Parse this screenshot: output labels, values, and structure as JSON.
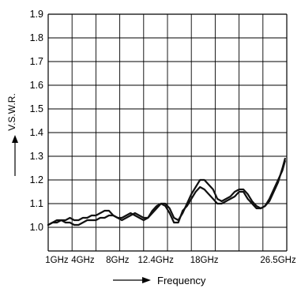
{
  "chart_data": {
    "type": "line",
    "title": "",
    "ylabel": "V.S.W.R.",
    "xlabel": "Frequency",
    "ylim": [
      0.9,
      1.9
    ],
    "xlim": [
      0,
      27.5
    ],
    "grid": true,
    "y_ticks": [
      1.0,
      1.1,
      1.2,
      1.3,
      1.4,
      1.5,
      1.6,
      1.7,
      1.8,
      1.9
    ],
    "x_tick_labels": [
      {
        "value": 1,
        "label": "1GHz"
      },
      {
        "value": 4,
        "label": "4GHz"
      },
      {
        "value": 8,
        "label": "8GHz"
      },
      {
        "value": 12.4,
        "label": "12.4GHz"
      },
      {
        "value": 18,
        "label": "18GHz"
      },
      {
        "value": 26.5,
        "label": "26.5GHz"
      }
    ],
    "series": [
      {
        "x": [
          0,
          0.5,
          1.0,
          1.5,
          2.0,
          2.5,
          3.0,
          3.5,
          4.0,
          4.5,
          5.0,
          5.5,
          6.0,
          6.5,
          7.0,
          7.5,
          8.0,
          8.5,
          9.0,
          9.5,
          10.0,
          10.5,
          11.0,
          11.5,
          12.0,
          12.5,
          13.0,
          13.5,
          14.0,
          14.5,
          15.0,
          15.5,
          16.0,
          16.5,
          17.0,
          17.5,
          18.0,
          18.5,
          19.0,
          19.5,
          20.0,
          20.5,
          21.0,
          21.5,
          22.0,
          22.5,
          23.0,
          23.5,
          24.0,
          24.5,
          25.0,
          25.5,
          26.0,
          26.5,
          27.0,
          27.3
        ],
        "values": [
          1.01,
          1.02,
          1.02,
          1.03,
          1.03,
          1.04,
          1.03,
          1.03,
          1.04,
          1.04,
          1.05,
          1.05,
          1.06,
          1.07,
          1.07,
          1.05,
          1.04,
          1.04,
          1.05,
          1.06,
          1.05,
          1.04,
          1.03,
          1.04,
          1.06,
          1.08,
          1.1,
          1.1,
          1.08,
          1.04,
          1.03,
          1.06,
          1.1,
          1.14,
          1.17,
          1.2,
          1.2,
          1.18,
          1.16,
          1.12,
          1.11,
          1.12,
          1.13,
          1.15,
          1.16,
          1.16,
          1.14,
          1.11,
          1.09,
          1.08,
          1.09,
          1.11,
          1.15,
          1.19,
          1.25,
          1.29
        ]
      },
      {
        "x": [
          0,
          0.5,
          1.0,
          1.5,
          2.0,
          2.5,
          3.0,
          3.5,
          4.0,
          4.5,
          5.0,
          5.5,
          6.0,
          6.5,
          7.0,
          7.5,
          8.0,
          8.5,
          9.0,
          9.5,
          10.0,
          10.5,
          11.0,
          11.5,
          12.0,
          12.5,
          13.0,
          13.5,
          14.0,
          14.5,
          15.0,
          15.5,
          16.0,
          16.5,
          17.0,
          17.5,
          18.0,
          18.5,
          19.0,
          19.5,
          20.0,
          20.5,
          21.0,
          21.5,
          22.0,
          22.5,
          23.0,
          23.5,
          24.0,
          24.5,
          25.0,
          25.5,
          26.0,
          26.5,
          27.0,
          27.3
        ],
        "values": [
          1.01,
          1.02,
          1.03,
          1.03,
          1.02,
          1.02,
          1.01,
          1.01,
          1.02,
          1.03,
          1.03,
          1.03,
          1.04,
          1.04,
          1.05,
          1.05,
          1.04,
          1.03,
          1.04,
          1.05,
          1.06,
          1.05,
          1.04,
          1.04,
          1.07,
          1.09,
          1.1,
          1.09,
          1.06,
          1.02,
          1.02,
          1.07,
          1.09,
          1.12,
          1.15,
          1.17,
          1.16,
          1.14,
          1.12,
          1.1,
          1.1,
          1.11,
          1.12,
          1.13,
          1.15,
          1.15,
          1.12,
          1.1,
          1.08,
          1.08,
          1.09,
          1.12,
          1.16,
          1.2,
          1.24,
          1.28
        ]
      }
    ]
  },
  "colors": {
    "line": "#111111",
    "grid": "#000000",
    "background": "#ffffff"
  }
}
